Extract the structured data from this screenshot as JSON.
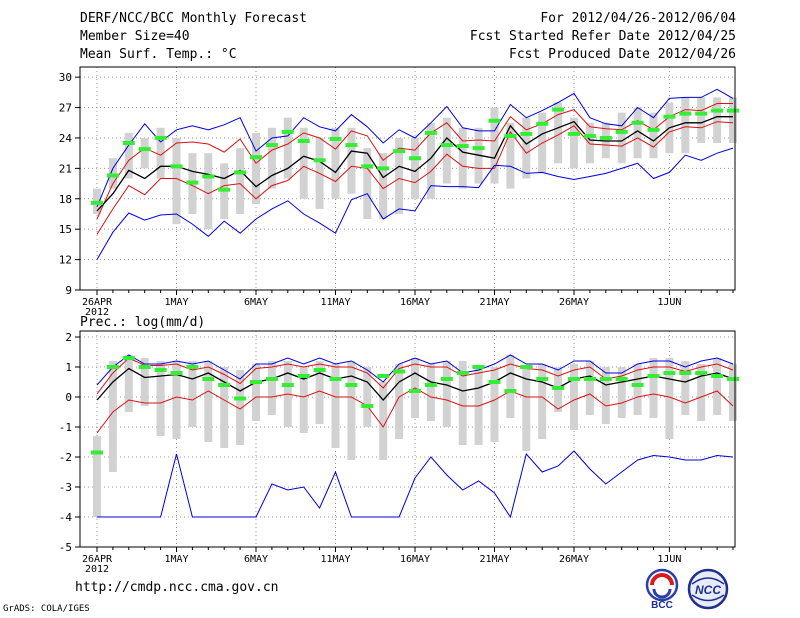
{
  "header": {
    "title": "DERF/NCC/BCC Monthly Forecast",
    "member_size": "Member Size=40",
    "variable": "Mean Surf. Temp.: °C",
    "period": "For 2012/04/26-2012/06/04",
    "fcst_started": "Fcst Started Refer Date 2012/04/25",
    "fcst_produced": "Fcst Produced Date 2012/04/26"
  },
  "footer": {
    "url": "http://cmdp.ncc.cma.gov.cn",
    "credit": "GrADS: COLA/IGES",
    "logo_bcc": "BCC",
    "logo_ncc": "NCC"
  },
  "colors": {
    "box": "#d2d2d2",
    "green": "#33ee33",
    "red": "#dd1111",
    "blue": "#0000dd",
    "black": "#000000",
    "grid": "#999999"
  },
  "chart_data": [
    {
      "type": "line",
      "title": "Mean Surf. Temp.: °C",
      "x_tick_labels": [
        "26APR",
        "1MAY",
        "6MAY",
        "11MAY",
        "16MAY",
        "21MAY",
        "26MAY",
        "1JUN"
      ],
      "x_tick_days": [
        0,
        5,
        10,
        15,
        20,
        25,
        30,
        36
      ],
      "x_year_label": "2012",
      "ylim": [
        9,
        31
      ],
      "y_ticks": [
        9,
        12,
        15,
        18,
        21,
        24,
        27,
        30
      ],
      "grid": true,
      "series": [
        {
          "name": "max",
          "color": "blue",
          "values": [
            17.2,
            21,
            23.3,
            25.4,
            23.6,
            24.8,
            25.2,
            24.8,
            25.3,
            26,
            22.7,
            24,
            24.2,
            26,
            25.1,
            24.7,
            26.3,
            25.1,
            23.5,
            24.8,
            24,
            25.5,
            27.1,
            25,
            24.7,
            24.7,
            27.3,
            26,
            26.7,
            27.5,
            28.4,
            26,
            25.4,
            25.2,
            27,
            26,
            27.9,
            28,
            28,
            28.8,
            27.9
          ]
        },
        {
          "name": "upper_red",
          "color": "red",
          "values": [
            16,
            19.5,
            21.8,
            23,
            22.3,
            23.5,
            23.6,
            23.4,
            22.6,
            23.9,
            21.5,
            22.8,
            23.4,
            24.5,
            24,
            22.9,
            24.7,
            24.2,
            21.8,
            23,
            22.8,
            24.5,
            25.5,
            23.7,
            23.8,
            23.7,
            26.1,
            24.8,
            25.4,
            26.3,
            26.8,
            25.1,
            24.9,
            24.8,
            25.7,
            24.8,
            26.1,
            26.8,
            26.7,
            27.4,
            27.4
          ]
        },
        {
          "name": "ensemble_mean",
          "color": "black",
          "values": [
            16.8,
            18.5,
            20.8,
            20,
            21.2,
            21.2,
            20.7,
            20.4,
            20,
            20.8,
            19.2,
            20.3,
            21,
            22.2,
            21.7,
            20.6,
            22.7,
            22.5,
            20.1,
            21.2,
            20.7,
            22,
            24,
            22.6,
            22.3,
            22,
            25.2,
            23.4,
            24.4,
            25,
            25.6,
            23.8,
            23.7,
            23.7,
            24.7,
            23.7,
            25,
            25.5,
            25.5,
            26.1,
            26.1
          ]
        },
        {
          "name": "lower_red",
          "color": "red",
          "values": [
            14.5,
            17,
            19.3,
            18.4,
            20,
            20,
            19.3,
            18.5,
            19.3,
            19.5,
            18,
            19.3,
            19.8,
            21.2,
            20.5,
            19.7,
            21.2,
            21,
            19,
            20,
            19.6,
            20.7,
            22.4,
            21.2,
            21,
            21,
            24.6,
            22.5,
            23.5,
            24.3,
            25.2,
            23.4,
            23.3,
            23.2,
            24,
            23.1,
            24.6,
            25.1,
            25,
            25.6,
            25.5
          ]
        },
        {
          "name": "min",
          "color": "blue",
          "values": [
            12,
            14.7,
            16.6,
            15.9,
            16.4,
            16.5,
            15.5,
            14.3,
            15.8,
            14.6,
            16,
            17,
            17.8,
            16.5,
            15.6,
            14.6,
            17.9,
            18.5,
            16,
            17,
            16.8,
            19.3,
            19.2,
            19.2,
            19.1,
            21.3,
            21.2,
            20.5,
            20.6,
            20.2,
            19.9,
            20.2,
            20.5,
            21,
            21.5,
            20,
            20.6,
            22.3,
            21.8,
            22.5,
            23
          ]
        }
      ],
      "markers": {
        "name": "observed_green",
        "values": [
          17.6,
          20.3,
          23.5,
          22.9,
          24,
          21.2,
          19.6,
          20.2,
          18.9,
          20.6,
          22.1,
          23.3,
          24.6,
          23.7,
          21.8,
          23.9,
          23.3,
          21.2,
          21,
          22.7,
          22,
          24.5,
          23.3,
          23.2,
          23,
          25.7,
          24.2,
          24.4,
          25.4,
          26.8,
          24.4,
          24.2,
          24,
          24.6,
          25.5,
          24.8,
          26.1,
          26.4,
          26.4,
          26.7,
          26.7
        ]
      },
      "boxes": {
        "name": "ensemble_spread",
        "lo": [
          16.5,
          19,
          20,
          21,
          20,
          15.5,
          16.5,
          15,
          16,
          16.5,
          17.5,
          19,
          20,
          18,
          17,
          18,
          18.5,
          16,
          16,
          16.5,
          18,
          18,
          19.5,
          19,
          19.5,
          19.5,
          19,
          20,
          20.5,
          21.5,
          21,
          21.5,
          22,
          21.5,
          22,
          22,
          22.5,
          22.5,
          23.5,
          23.5,
          23.5
        ],
        "hi": [
          19,
          22,
          24.5,
          24,
          25,
          24,
          22.5,
          22.5,
          21.5,
          23,
          24.5,
          25,
          26,
          25,
          24,
          25,
          25,
          23,
          22.5,
          24,
          24,
          25.5,
          26,
          25,
          25,
          27,
          25.5,
          26,
          26.5,
          27.5,
          26,
          25.5,
          25.5,
          26.5,
          27,
          26.5,
          27.5,
          28,
          28,
          28,
          28
        ]
      }
    },
    {
      "type": "line",
      "title": "Prec.: log(mm/d)",
      "x_tick_labels": [
        "26APR",
        "1MAY",
        "6MAY",
        "11MAY",
        "16MAY",
        "21MAY",
        "26MAY",
        "1JUN"
      ],
      "x_tick_days": [
        0,
        5,
        10,
        15,
        20,
        25,
        30,
        36
      ],
      "x_year_label": "2012",
      "ylim": [
        -5,
        2.2
      ],
      "y_ticks": [
        -5,
        -4,
        -3,
        -2,
        -1,
        0,
        1,
        2
      ],
      "grid": true,
      "series": [
        {
          "name": "max",
          "color": "blue",
          "values": [
            0.4,
            1,
            1.4,
            1.1,
            1.1,
            1.2,
            1.1,
            1.2,
            0.9,
            0.6,
            1.1,
            1.1,
            1.3,
            1.1,
            1.3,
            1.1,
            1.2,
            0.9,
            0.5,
            1.1,
            1.3,
            1.1,
            1.2,
            0.8,
            0.9,
            1.1,
            1.4,
            1.1,
            1.1,
            0.9,
            1.2,
            1.2,
            0.8,
            0.8,
            1.1,
            1.2,
            1.2,
            1,
            1.2,
            1.3,
            1.1
          ]
        },
        {
          "name": "upper_red",
          "color": "red",
          "values": [
            0.1,
            0.8,
            1.3,
            1.05,
            1.05,
            1.1,
            0.9,
            1,
            0.75,
            0.45,
            0.95,
            1,
            1.1,
            1,
            1.1,
            1,
            1,
            0.8,
            0.3,
            0.95,
            1.1,
            1,
            1,
            0.7,
            0.8,
            0.9,
            1.1,
            0.95,
            0.9,
            0.7,
            0.9,
            1,
            0.6,
            0.7,
            0.9,
            1,
            1,
            0.85,
            1,
            1.1,
            0.9
          ]
        },
        {
          "name": "ensemble_mean",
          "color": "black",
          "values": [
            -0.1,
            0.5,
            0.95,
            0.65,
            0.7,
            0.75,
            0.6,
            0.8,
            0.5,
            0.2,
            0.5,
            0.6,
            0.8,
            0.6,
            0.8,
            0.6,
            0.7,
            0.5,
            -0.1,
            0.5,
            0.8,
            0.5,
            0.4,
            0.2,
            0.3,
            0.5,
            0.8,
            0.6,
            0.5,
            0.3,
            0.6,
            0.7,
            0.4,
            0.5,
            0.6,
            0.7,
            0.6,
            0.5,
            0.7,
            0.8,
            0.6
          ]
        },
        {
          "name": "lower_red",
          "color": "red",
          "values": [
            -1.2,
            -0.5,
            -0.1,
            -0.2,
            -0.2,
            0,
            -0.1,
            0.2,
            -0.1,
            -0.4,
            0,
            0,
            0.1,
            0,
            0.2,
            0,
            0,
            -0.3,
            -1,
            0,
            0.3,
            0,
            -0.1,
            -0.3,
            -0.3,
            -0.1,
            0.2,
            0,
            0,
            -0.4,
            -0.1,
            0.1,
            -0.3,
            -0.2,
            0,
            0.1,
            0,
            -0.2,
            0,
            0.2,
            -0.3
          ]
        },
        {
          "name": "min",
          "color": "blue",
          "values": [
            -4,
            -4,
            -4,
            -4,
            -4,
            -1.9,
            -4,
            -4,
            -4,
            -4,
            -4,
            -2.9,
            -3.1,
            -3,
            -3.7,
            -2.5,
            -4,
            -4,
            -4,
            -4,
            -2.7,
            -2,
            -2.6,
            -3.1,
            -2.8,
            -3.2,
            -4,
            -1.9,
            -2.5,
            -2.3,
            -1.8,
            -2.4,
            -2.9,
            -2.5,
            -2.1,
            -1.95,
            -2,
            -2.1,
            -2.1,
            -1.95,
            -2
          ]
        }
      ],
      "markers": {
        "name": "observed_green",
        "values": [
          -1.85,
          1,
          1.3,
          1,
          0.9,
          0.8,
          1,
          0.6,
          0.4,
          -0.05,
          0.5,
          0.6,
          0.4,
          0.7,
          0.9,
          0.6,
          0.4,
          -0.3,
          0.7,
          0.85,
          0.2,
          0.4,
          0.6,
          0.8,
          1,
          0.5,
          0.2,
          1,
          0.6,
          0.3,
          0.6,
          0.6,
          0.6,
          0.6,
          0.4,
          0.7,
          0.8,
          0.8,
          0.8,
          0.7,
          0.6
        ]
      },
      "boxes": {
        "name": "ensemble_spread",
        "lo": [
          -4,
          -2.5,
          -0.5,
          -0.3,
          -1.3,
          -1.4,
          -1,
          -1.5,
          -1.7,
          -1.6,
          -0.8,
          -0.6,
          -1,
          -1.2,
          -0.9,
          -1.7,
          -2.1,
          -1,
          -2.1,
          -1.4,
          -0.7,
          -0.8,
          -1,
          -1.6,
          -1.6,
          -1.5,
          -0.7,
          -1.8,
          -1.4,
          -0.5,
          -1.1,
          -0.6,
          -0.9,
          -0.7,
          -0.6,
          -0.7,
          -1.4,
          -0.6,
          -0.8,
          -0.6,
          -0.8
        ]
      },
      "boxes_hi": [
        -1.3,
        1.2,
        1.4,
        1.3,
        1.2,
        1.2,
        1.2,
        1.2,
        1,
        0.9,
        1.1,
        1.2,
        1.2,
        1,
        1.2,
        1.1,
        1.2,
        1,
        0.5,
        1.1,
        1.3,
        1.1,
        1.2,
        1.2,
        1,
        1,
        1.4,
        1,
        1.1,
        1,
        1.1,
        1.2,
        1,
        1,
        1.1,
        1.3,
        1.3,
        1.2,
        1.1,
        1.3,
        1.1
      ]
    }
  ]
}
